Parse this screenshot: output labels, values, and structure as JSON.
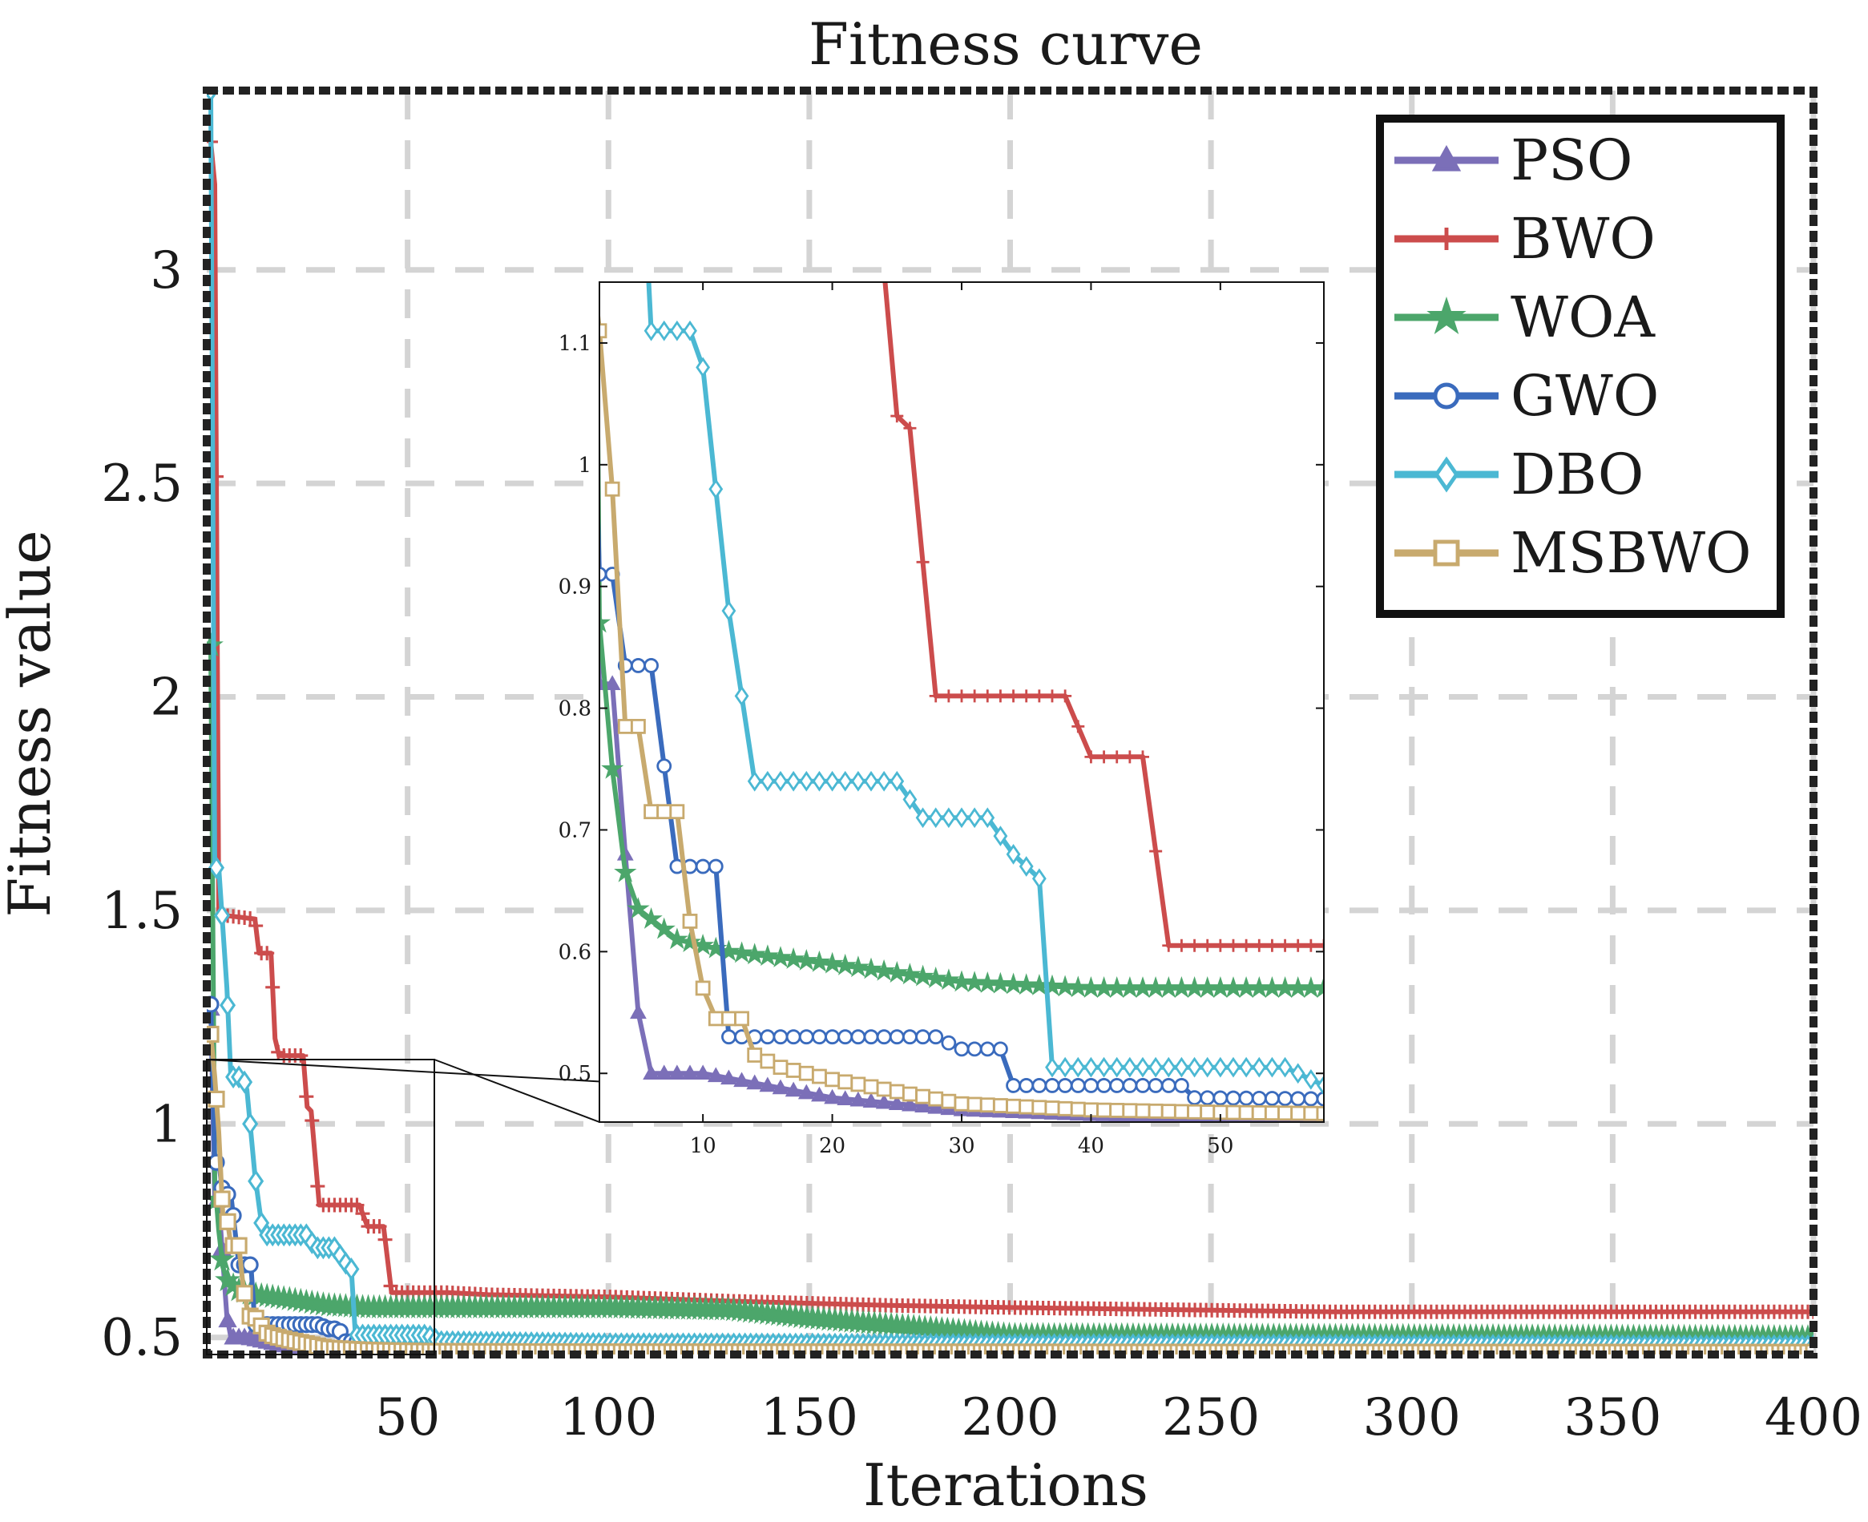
{
  "chart_data": {
    "type": "line",
    "title": "Fitness curve",
    "xlabel": "Iterations",
    "ylabel": "Fitness value",
    "xlim": [
      0,
      400
    ],
    "ylim": [
      0.46,
      3.42
    ],
    "xticks": [
      50,
      100,
      150,
      200,
      250,
      300,
      350,
      400
    ],
    "yticks": [
      0.5,
      1,
      1.5,
      2,
      2.5,
      3
    ],
    "xtick_labels": [
      "50",
      "100",
      "150",
      "200",
      "250",
      "300",
      "350",
      "400"
    ],
    "ytick_labels": [
      "0.5",
      "1",
      "1.5",
      "2",
      "2.5",
      "3"
    ],
    "grid": true,
    "legend_position": "top-right",
    "series": [
      {
        "name": "PSO",
        "color": "#7b6fb8",
        "marker": "triangle",
        "points": [
          [
            1,
            1.27
          ],
          [
            2,
            0.82
          ],
          [
            3,
            0.82
          ],
          [
            4,
            0.68
          ],
          [
            5,
            0.55
          ],
          [
            6,
            0.5
          ],
          [
            10,
            0.5
          ],
          [
            15,
            0.49
          ],
          [
            20,
            0.48
          ],
          [
            25,
            0.475
          ],
          [
            30,
            0.47
          ],
          [
            35,
            0.468
          ],
          [
            40,
            0.466
          ],
          [
            50,
            0.465
          ],
          [
            100,
            0.464
          ],
          [
            400,
            0.463
          ]
        ]
      },
      {
        "name": "BWO",
        "color": "#cc4c4c",
        "marker": "plus",
        "points": [
          [
            1,
            3.3
          ],
          [
            2,
            3.2
          ],
          [
            3,
            1.49
          ],
          [
            12,
            1.48
          ],
          [
            13,
            1.4
          ],
          [
            16,
            1.4
          ],
          [
            17,
            1.2
          ],
          [
            18,
            1.16
          ],
          [
            24,
            1.16
          ],
          [
            25,
            1.04
          ],
          [
            26,
            1.03
          ],
          [
            28,
            0.81
          ],
          [
            38,
            0.81
          ],
          [
            40,
            0.76
          ],
          [
            44,
            0.76
          ],
          [
            46,
            0.605
          ],
          [
            60,
            0.605
          ],
          [
            70,
            0.6
          ],
          [
            100,
            0.595
          ],
          [
            130,
            0.585
          ],
          [
            170,
            0.575
          ],
          [
            200,
            0.57
          ],
          [
            280,
            0.56
          ],
          [
            400,
            0.56
          ]
        ]
      },
      {
        "name": "WOA",
        "color": "#4ca66b",
        "marker": "star",
        "points": [
          [
            1,
            2.12
          ],
          [
            2,
            0.87
          ],
          [
            3,
            0.75
          ],
          [
            4,
            0.665
          ],
          [
            5,
            0.635
          ],
          [
            8,
            0.61
          ],
          [
            12,
            0.6
          ],
          [
            20,
            0.59
          ],
          [
            30,
            0.575
          ],
          [
            40,
            0.57
          ],
          [
            60,
            0.57
          ],
          [
            100,
            0.57
          ],
          [
            130,
            0.565
          ],
          [
            150,
            0.545
          ],
          [
            200,
            0.505
          ],
          [
            400,
            0.5
          ]
        ]
      },
      {
        "name": "GWO",
        "color": "#3a6bbd",
        "marker": "circle",
        "points": [
          [
            1,
            1.28
          ],
          [
            2,
            0.91
          ],
          [
            3,
            0.91
          ],
          [
            4,
            0.835
          ],
          [
            6,
            0.835
          ],
          [
            8,
            0.67
          ],
          [
            11,
            0.67
          ],
          [
            12,
            0.53
          ],
          [
            28,
            0.53
          ],
          [
            30,
            0.52
          ],
          [
            33,
            0.52
          ],
          [
            34,
            0.49
          ],
          [
            47,
            0.49
          ],
          [
            48,
            0.48
          ],
          [
            100,
            0.475
          ],
          [
            400,
            0.47
          ]
        ]
      },
      {
        "name": "DBO",
        "color": "#4bb8d3",
        "marker": "diamond",
        "points": [
          [
            1,
            3.42
          ],
          [
            2,
            1.6
          ],
          [
            3,
            1.6
          ],
          [
            5,
            1.32
          ],
          [
            6,
            1.11
          ],
          [
            9,
            1.11
          ],
          [
            10,
            1.08
          ],
          [
            12,
            0.88
          ],
          [
            14,
            0.74
          ],
          [
            25,
            0.74
          ],
          [
            27,
            0.71
          ],
          [
            32,
            0.71
          ],
          [
            34,
            0.68
          ],
          [
            36,
            0.66
          ],
          [
            37,
            0.505
          ],
          [
            55,
            0.505
          ],
          [
            58,
            0.49
          ],
          [
            100,
            0.485
          ],
          [
            400,
            0.48
          ]
        ]
      },
      {
        "name": "MSBWO",
        "color": "#c8aa6e",
        "marker": "square",
        "points": [
          [
            1,
            1.21
          ],
          [
            2,
            1.11
          ],
          [
            3,
            0.98
          ],
          [
            4,
            0.785
          ],
          [
            5,
            0.785
          ],
          [
            6,
            0.715
          ],
          [
            8,
            0.715
          ],
          [
            9,
            0.625
          ],
          [
            10,
            0.57
          ],
          [
            11,
            0.545
          ],
          [
            13,
            0.545
          ],
          [
            14,
            0.515
          ],
          [
            16,
            0.505
          ],
          [
            20,
            0.495
          ],
          [
            25,
            0.485
          ],
          [
            30,
            0.475
          ],
          [
            40,
            0.47
          ],
          [
            50,
            0.468
          ],
          [
            58,
            0.467
          ],
          [
            100,
            0.466
          ],
          [
            400,
            0.465
          ]
        ]
      }
    ],
    "inset": {
      "xlim": [
        2,
        58
      ],
      "ylim": [
        0.46,
        1.15
      ],
      "xticks": [
        10,
        20,
        30,
        40,
        50
      ],
      "yticks": [
        0.5,
        0.6,
        0.7,
        0.8,
        0.9,
        1,
        1.1
      ],
      "xtick_labels": [
        "10",
        "20",
        "30",
        "40",
        "50"
      ],
      "ytick_labels": [
        "0.5",
        "0.6",
        "0.7",
        "0.8",
        "0.9",
        "1",
        "1.1"
      ]
    }
  }
}
